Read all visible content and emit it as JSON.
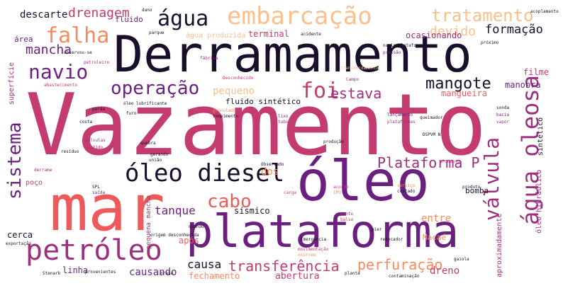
{
  "title": "Word cloud",
  "palette": {
    "black": "#1a0f2b",
    "purple": "#6b1f7f",
    "magenta": "#9e2f7f",
    "rose": "#c43b6f",
    "coral": "#ee5a5b",
    "orange": "#fa8a5d",
    "peach": "#fdbf8c",
    "cream": "#fde1b8"
  },
  "words": {
    "vazamento": "Vazamento",
    "derramamento": "Derramamento",
    "mar": "mar",
    "oleo": "óleo",
    "plataforma": "plataforma",
    "petroleo": "petróleo",
    "oleo_diesel": "óleo diesel",
    "agua_oleosa": "água oleosa",
    "embarcacao": "embarcação",
    "navio": "navio",
    "falha": "falha",
    "agua": "água",
    "tratamento": "tratamento",
    "operacao": "operação",
    "foi": "foi",
    "sistema": "sistema",
    "mancha": "mancha",
    "drenagem": "drenagem",
    "descarte": "descarte",
    "devido": "devido",
    "formacao": "formação",
    "mangote": "mangote",
    "estava": "estava",
    "pequeno": "pequeno",
    "valvula": "válvula",
    "plataforma_p": "Plataforma P",
    "cabo": "cabo",
    "tanque": "tanque",
    "transferencia": "transferência",
    "perfuracao": "perfuração",
    "causa": "causa",
    "causando": "causando",
    "fechamento": "fechamento",
    "abertura": "abertura",
    "entre": "entre",
    "dreno": "dreno",
    "dos": "dos",
    "sismico": "sísmico",
    "linha": "linha",
    "cerca": "cerca",
    "apos": "após",
    "mangueira": "mangueira",
    "manobra": "manobra",
    "filme": "filme",
    "fluido": "fluido",
    "fluido_sintetico": "fluido sintético",
    "agua_produzida": "água produzida",
    "terminal": "terminal",
    "ocasionando": "ocasionando",
    "area": "área",
    "bomba": "bomba",
    "aproximadamente": "aproximadamente",
    "macae": "Macaé",
    "oleo_hidraulico": "óleo hidráulico",
    "sintetico": "sintético",
    "pequena_mancha": "pequena mancha",
    "poco": "poço",
    "superficie": "superfície",
    "dano": "dano",
    "parque": "parque",
    "acidente": "acidente",
    "abastecimento": "abastecimento",
    "derrame": "derrame",
    "residuo": "resíduo",
    "origem_desconhecida": "origem desconhecida",
    "emergencia": "Emergência",
    "exportacao": "exportação",
    "rebocador": "rebocador",
    "observado": "Observado",
    "producao": "produção",
    "fabrica": "fábrica",
    "quando": "quando",
    "campo": "Campo",
    "desconhecido": "Desconhecido",
    "processo": "processo",
    "gerando": "gerando",
    "oleo_lubrificante": "óleo lubrificante",
    "quebra": "quebra",
    "uniao": "união",
    "furo": "furo",
    "costa": "costa",
    "perda": "perda",
    "navio_plataforma": "navio plataforma",
    "produto": "produto",
    "proximo": "próximo",
    "pressao": "pressão",
    "valvulas": "válvulas",
    "sentido": "sentido",
    "transbordamento": "transbordamento",
    "granulado": "granulado",
    "rompimento": "rompimento",
    "acoplamento": "acoplamento",
    "observou_se": "observou-se",
    "petroleiro": "petroleiro",
    "queimador": "queimador",
    "lancamento": "lançamento",
    "plataformas": "plataformas",
    "movimentacao": "movimentação",
    "ocorreu": "ocorreu",
    "sonda": "sonda",
    "gaiola": "gaiola",
    "stenarb": "Stenarb",
    "provenientes": "provenientes",
    "grasa": "grasa",
    "planta": "planta",
    "contaminacao": "contaminação",
    "bacia": "bacia",
    "vapor": "vapor",
    "acordo": "acordo",
    "pier": "píer",
    "ipu": "IPU",
    "dpvm": "DSPVM N",
    "spl": "SPL",
    "saida": "saída",
    "ponto": "ponto",
    "balsa": "balsa",
    "servico": "serviço",
    "cerca2": "costado",
    "lixo": "lixo",
    "tubo": "tubo",
    "carga": "carga"
  }
}
